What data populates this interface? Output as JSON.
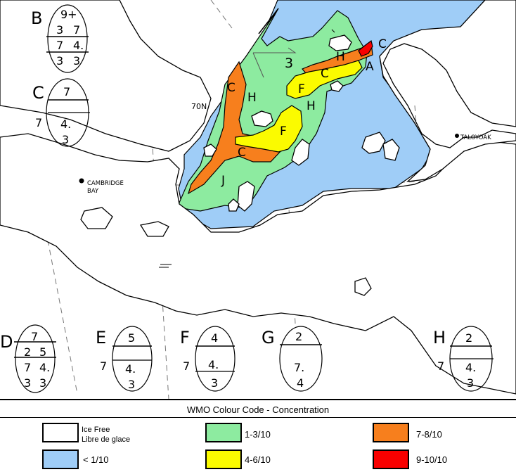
{
  "colors": {
    "ice_free": "#ffffff",
    "lt_1_10": "#9fcdf7",
    "c1_3": "#8deba0",
    "c4_6": "#fbfb00",
    "c7_8": "#f77f1d",
    "c9_10": "#f80000",
    "land": "#ffffff",
    "outline": "#000000"
  },
  "map": {
    "region_labels": {
      "A": "A",
      "C1": "C",
      "C2": "C",
      "C3": "C",
      "C4": "C",
      "H1": "H",
      "H2": "H",
      "H3": "H",
      "F1": "F",
      "F2": "F",
      "J": "J",
      "three": "3"
    },
    "places": {
      "cambridge_bay_line1": "CAMBRIDGE",
      "cambridge_bay_line2": "BAY",
      "taloyoak": "TALOYOAK",
      "lat_70n": "70N"
    }
  },
  "egg_codes": {
    "B": {
      "letter": "B",
      "rows": [
        [
          "9+"
        ],
        [
          "3",
          "7"
        ],
        [
          "7",
          "4."
        ],
        [
          "3",
          "3"
        ]
      ]
    },
    "C": {
      "letter": "C",
      "total": "7",
      "side": "7",
      "rows": [
        [
          "4."
        ],
        [
          "3"
        ]
      ]
    },
    "D": {
      "letter": "D",
      "rows": [
        [
          "7"
        ],
        [
          "2",
          "5"
        ],
        [
          "7",
          "4."
        ],
        [
          "3",
          "3"
        ]
      ]
    },
    "E": {
      "letter": "E",
      "total": "5",
      "side": "7",
      "rows": [
        [
          "4."
        ],
        [
          "3"
        ]
      ]
    },
    "F": {
      "letter": "F",
      "total": "4",
      "side": "7",
      "rows": [
        [
          "4."
        ],
        [
          "3"
        ]
      ]
    },
    "G": {
      "letter": "G",
      "total": "2",
      "rows": [
        [
          "7."
        ],
        [
          "4"
        ]
      ]
    },
    "H": {
      "letter": "H",
      "total": "2",
      "side": "7",
      "rows": [
        [
          "4."
        ],
        [
          "3"
        ]
      ]
    }
  },
  "legend": {
    "title": "WMO Colour Code - Concentration",
    "items": [
      {
        "key": "ice_free",
        "line1": "Ice Free",
        "line2": "Libre de glace"
      },
      {
        "key": "lt_1_10",
        "line1": "< 1/10"
      },
      {
        "key": "c1_3",
        "line1": "1-3/10"
      },
      {
        "key": "c4_6",
        "line1": "4-6/10"
      },
      {
        "key": "c7_8",
        "line1": "7-8/10"
      },
      {
        "key": "c9_10",
        "line1": "9-10/10"
      }
    ]
  }
}
